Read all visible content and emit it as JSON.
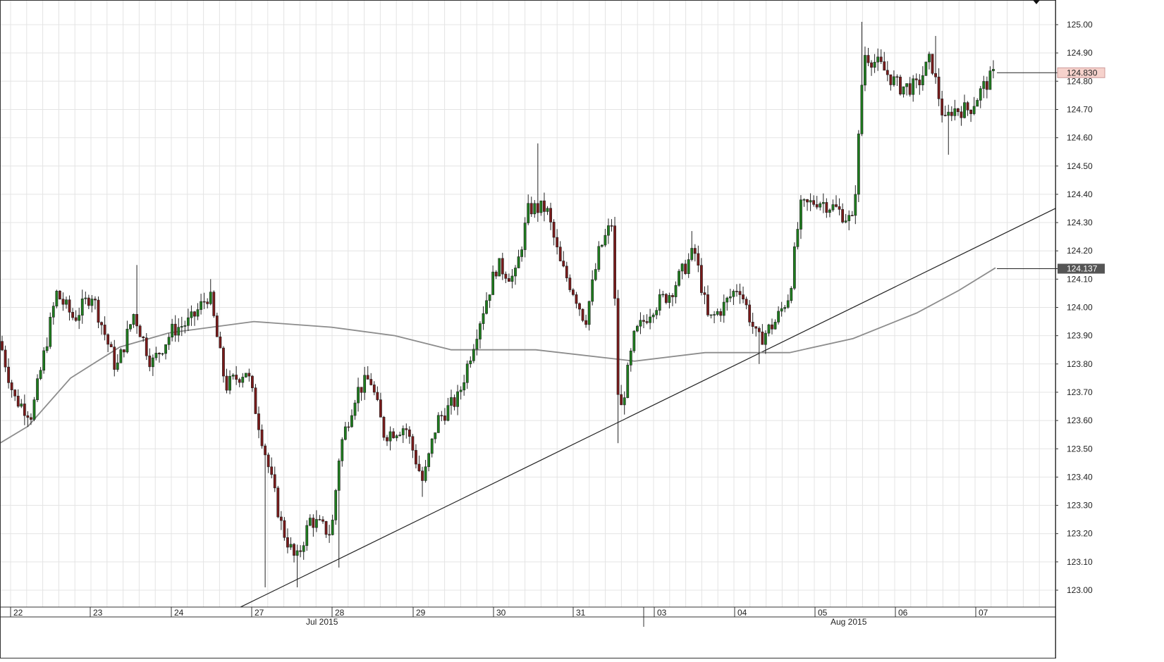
{
  "chart_data": {
    "type": "candlestick",
    "instrument": "",
    "title": "",
    "y_axis": {
      "ylim": [
        122.94,
        125.08
      ],
      "ticks": [
        "123.00",
        "123.10",
        "123.20",
        "123.30",
        "123.40",
        "123.50",
        "123.60",
        "123.70",
        "123.80",
        "123.90",
        "124.00",
        "124.10",
        "124.20",
        "124.30",
        "124.40",
        "124.50",
        "124.60",
        "124.70",
        "124.80",
        "124.90",
        "125.00"
      ],
      "position": "right"
    },
    "x_axis": {
      "day_labels": [
        "22",
        "23",
        "24",
        "27",
        "28",
        "29",
        "30",
        "31",
        "03",
        "04",
        "05",
        "06",
        "07"
      ],
      "month_labels": [
        "Jul 2015",
        "Aug 2015"
      ]
    },
    "price_labels": {
      "last_price": "124.830",
      "moving_average": "124.137"
    },
    "colors": {
      "bull": "#1e7d1e",
      "bear": "#7a1a1a",
      "grid": "#e4e4e4",
      "moving_average": "#8c8c8c",
      "trendline": "#222222",
      "last_price_bg": "#f6d2cc",
      "ma_label_bg": "#555555"
    },
    "key_prices": {
      "start_close": 123.88,
      "jul23_high": 124.15,
      "jul24_high": 124.1,
      "jul27_low": 123.01,
      "jul28_low": 123.08,
      "jul29_low": 123.33,
      "jul30_high": 124.58,
      "jul31_low": 123.52,
      "aug03_high": 124.27,
      "aug04_low": 123.8,
      "aug05_high": 125.01,
      "aug06_high": 124.96,
      "aug06_low": 124.54,
      "last_close": 124.83
    },
    "trendline": {
      "from": {
        "date": "Jul 27",
        "price": 122.94
      },
      "to": {
        "date": "Aug 07",
        "price": 124.35
      }
    },
    "moving_average_path": [
      123.52,
      123.88,
      123.95,
      123.94,
      123.91,
      123.84,
      123.85,
      123.83,
      123.81,
      123.84,
      123.84,
      123.88,
      124.0,
      124.14
    ],
    "grid": true,
    "legend": null
  }
}
